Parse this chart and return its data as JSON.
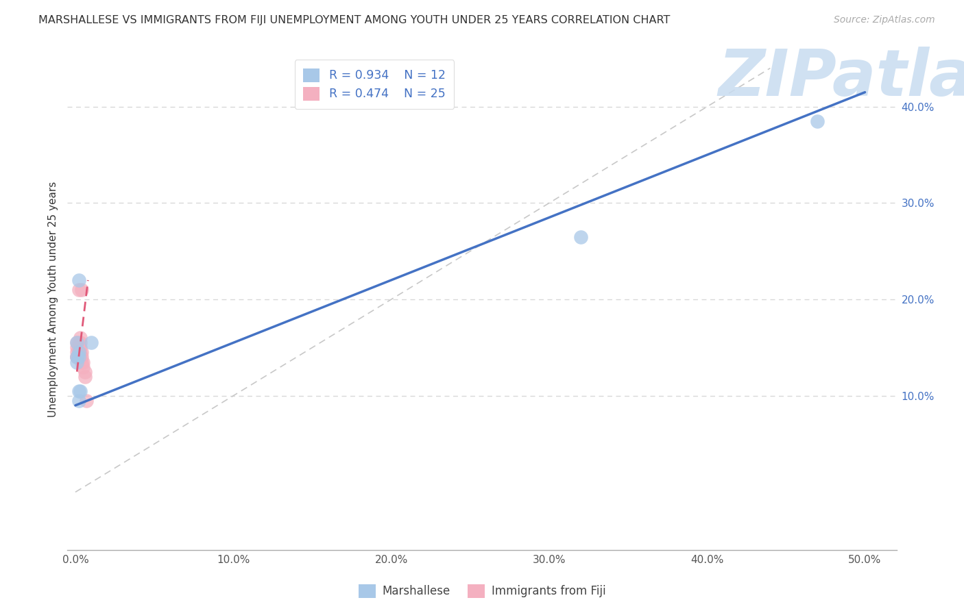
{
  "title": "MARSHALLESE VS IMMIGRANTS FROM FIJI UNEMPLOYMENT AMONG YOUTH UNDER 25 YEARS CORRELATION CHART",
  "source": "Source: ZipAtlas.com",
  "ylabel": "Unemployment Among Youth under 25 years",
  "R1": 0.934,
  "N1": 12,
  "R2": 0.474,
  "N2": 25,
  "legend_label1": "Marshallese",
  "legend_label2": "Immigrants from Fiji",
  "color1": "#A8C8E8",
  "color2": "#F4B0C0",
  "line_color1": "#4472C4",
  "line_color2": "#E05878",
  "ref_line_color": "#C8C8C8",
  "watermark": "ZIPatlas",
  "watermark_color": "#C8DCF0",
  "bg_color": "#FFFFFF",
  "grid_color": "#D8D8D8",
  "blue_x": [
    0.002,
    0.002,
    0.003,
    0.001,
    0.001,
    0.002,
    0.002,
    0.001,
    0.01,
    0.32,
    0.47,
    0.002
  ],
  "blue_y": [
    0.22,
    0.105,
    0.105,
    0.14,
    0.155,
    0.145,
    0.14,
    0.135,
    0.155,
    0.265,
    0.385,
    0.095
  ],
  "pink_x": [
    0.001,
    0.001,
    0.001,
    0.001,
    0.001,
    0.002,
    0.002,
    0.002,
    0.002,
    0.002,
    0.002,
    0.003,
    0.003,
    0.003,
    0.003,
    0.003,
    0.004,
    0.004,
    0.004,
    0.004,
    0.005,
    0.005,
    0.006,
    0.006,
    0.007
  ],
  "pink_y": [
    0.14,
    0.14,
    0.145,
    0.15,
    0.155,
    0.14,
    0.145,
    0.15,
    0.155,
    0.21,
    0.14,
    0.14,
    0.145,
    0.15,
    0.155,
    0.16,
    0.135,
    0.14,
    0.145,
    0.21,
    0.13,
    0.135,
    0.12,
    0.125,
    0.095
  ],
  "blue_line_x": [
    0.0,
    0.5
  ],
  "blue_line_y": [
    0.09,
    0.415
  ],
  "pink_line_x": [
    0.001,
    0.008
  ],
  "pink_line_y": [
    0.125,
    0.22
  ],
  "ref_line_x": [
    0.0,
    0.44
  ],
  "ref_line_y": [
    0.0,
    0.44
  ],
  "xlim": [
    -0.005,
    0.52
  ],
  "ylim": [
    -0.06,
    0.46
  ],
  "xticks": [
    0.0,
    0.1,
    0.2,
    0.3,
    0.4,
    0.5
  ],
  "xtick_labels": [
    "0.0%",
    "10.0%",
    "20.0%",
    "30.0%",
    "40.0%",
    "50.0%"
  ],
  "yticks": [
    0.1,
    0.2,
    0.3,
    0.4
  ],
  "ytick_labels": [
    "10.0%",
    "20.0%",
    "30.0%",
    "40.0%"
  ]
}
